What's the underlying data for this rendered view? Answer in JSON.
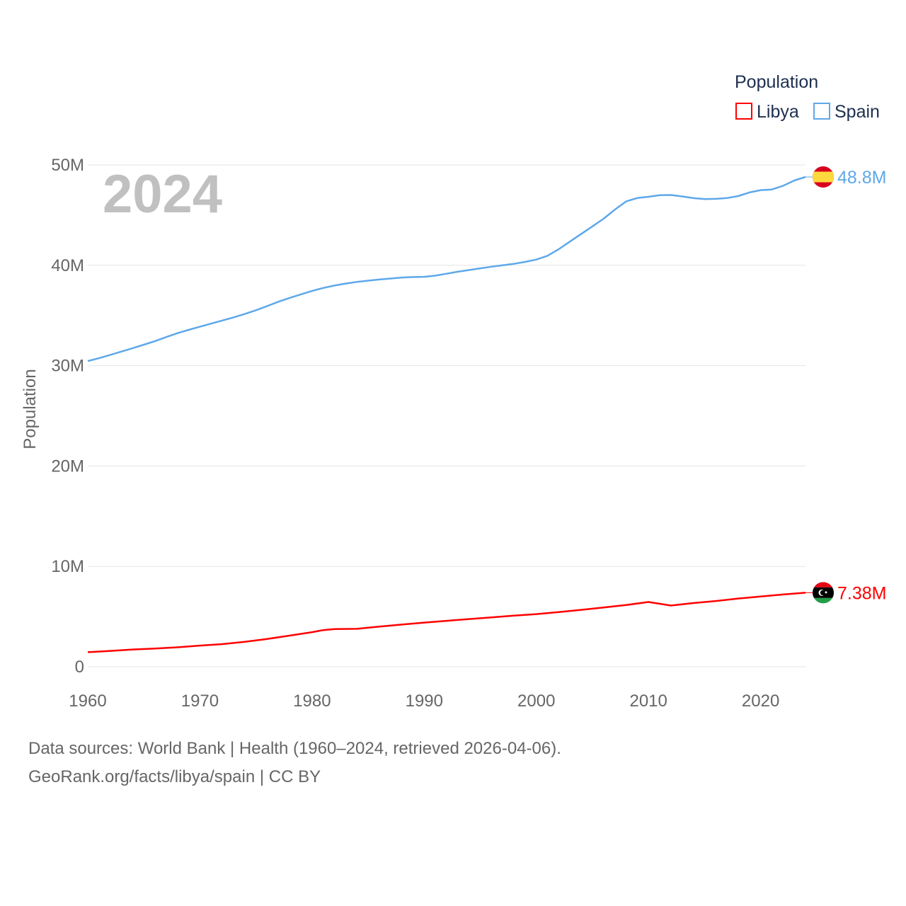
{
  "chart_data": {
    "type": "line",
    "title": "2024",
    "ylabel": "Population",
    "xlabel": "",
    "xlim": [
      1960,
      2024
    ],
    "ylim": [
      0,
      50000000
    ],
    "x_ticks": [
      "1960",
      "1970",
      "1980",
      "1990",
      "2000",
      "2010",
      "2020"
    ],
    "y_ticks": [
      {
        "v": 0,
        "label": "0"
      },
      {
        "v": 10000000,
        "label": "10M"
      },
      {
        "v": 20000000,
        "label": "20M"
      },
      {
        "v": 30000000,
        "label": "30M"
      },
      {
        "v": 40000000,
        "label": "40M"
      },
      {
        "v": 50000000,
        "label": "50M"
      }
    ],
    "grid": true,
    "legend": {
      "title": "Population",
      "placement": "top-right"
    },
    "series": [
      {
        "name": "Libya",
        "color": "#ff0000",
        "end_label": "7.38M",
        "flag": "libya-flag",
        "x": [
          1960,
          1962,
          1964,
          1966,
          1968,
          1970,
          1972,
          1974,
          1976,
          1978,
          1980,
          1981,
          1982,
          1984,
          1986,
          1988,
          1990,
          1992,
          1994,
          1996,
          1998,
          2000,
          2002,
          2004,
          2006,
          2008,
          2010,
          2012,
          2014,
          2016,
          2018,
          2020,
          2022,
          2024
        ],
        "values": [
          1.45,
          1.58,
          1.72,
          1.82,
          1.94,
          2.11,
          2.26,
          2.48,
          2.77,
          3.1,
          3.45,
          3.65,
          3.75,
          3.78,
          4.0,
          4.2,
          4.4,
          4.58,
          4.75,
          4.92,
          5.1,
          5.25,
          5.45,
          5.67,
          5.9,
          6.15,
          6.45,
          6.1,
          6.35,
          6.55,
          6.8,
          7.0,
          7.2,
          7.38
        ]
      },
      {
        "name": "Spain",
        "color": "#5ea8ea",
        "end_label": "48.8M",
        "flag": "spain-flag",
        "x": [
          1960,
          1961,
          1962,
          1963,
          1964,
          1965,
          1966,
          1967,
          1968,
          1969,
          1970,
          1971,
          1972,
          1973,
          1974,
          1975,
          1976,
          1977,
          1978,
          1979,
          1980,
          1981,
          1982,
          1983,
          1984,
          1985,
          1986,
          1987,
          1988,
          1989,
          1990,
          1991,
          1992,
          1993,
          1994,
          1995,
          1996,
          1997,
          1998,
          1999,
          2000,
          2001,
          2002,
          2003,
          2004,
          2005,
          2006,
          2007,
          2008,
          2009,
          2010,
          2011,
          2012,
          2013,
          2014,
          2015,
          2016,
          2017,
          2018,
          2019,
          2020,
          2021,
          2022,
          2023,
          2024
        ],
        "values": [
          30.46,
          30.74,
          31.07,
          31.4,
          31.74,
          32.09,
          32.45,
          32.85,
          33.24,
          33.57,
          33.88,
          34.19,
          34.5,
          34.81,
          35.15,
          35.52,
          35.94,
          36.37,
          36.75,
          37.1,
          37.44,
          37.74,
          37.98,
          38.18,
          38.34,
          38.47,
          38.58,
          38.68,
          38.78,
          38.83,
          38.85,
          38.97,
          39.16,
          39.36,
          39.53,
          39.7,
          39.86,
          40.0,
          40.15,
          40.34,
          40.57,
          40.95,
          41.6,
          42.37,
          43.12,
          43.88,
          44.64,
          45.55,
          46.36,
          46.7,
          46.83,
          46.98,
          47.0,
          46.86,
          46.69,
          46.6,
          46.62,
          46.7,
          46.9,
          47.26,
          47.49,
          47.55,
          47.92,
          48.45,
          48.8
        ]
      }
    ],
    "value_unit": "millions"
  },
  "footer": {
    "line1": "Data sources: World Bank | Health (1960–2024, retrieved 2026-04-06).",
    "line2": "GeoRank.org/facts/libya/spain | CC BY"
  }
}
